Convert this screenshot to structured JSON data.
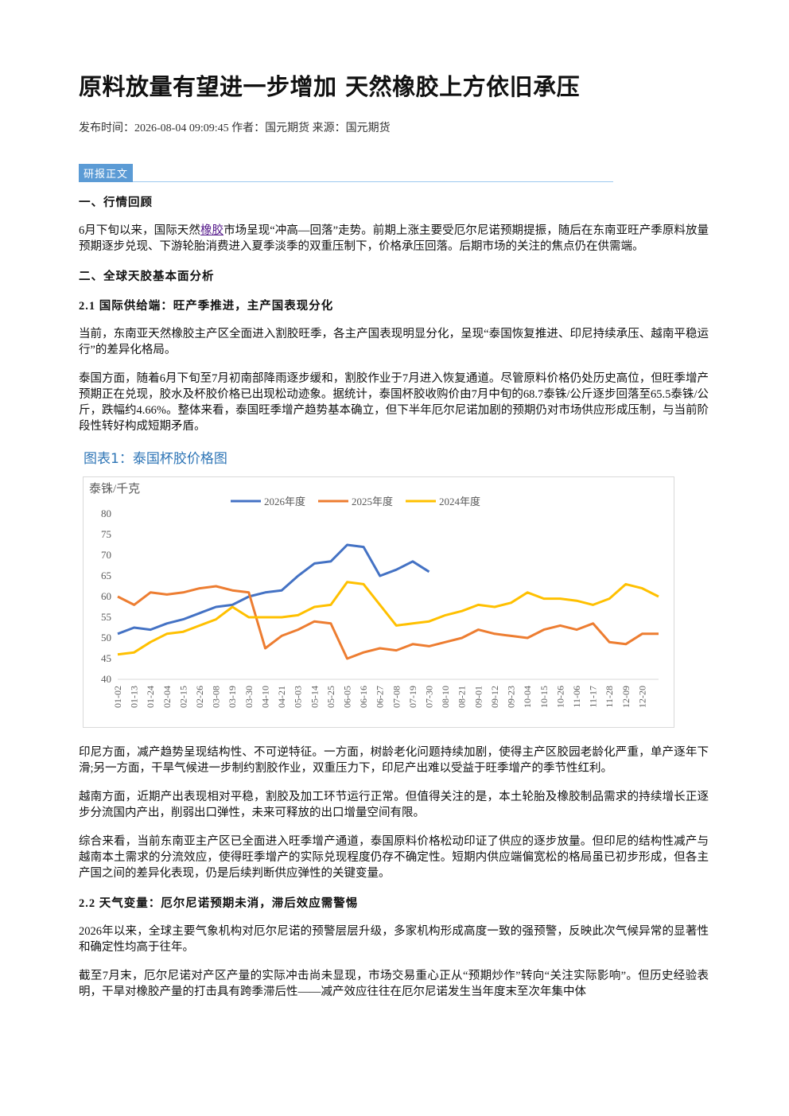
{
  "header": {
    "title": "原料放量有望进一步增加 天然橡胶上方依旧承压",
    "meta": "发布时间：2026-08-04 09:09:45 作者：国元期货 来源：国元期货"
  },
  "section_tag": "研报正文",
  "body": {
    "h1": "一、行情回顾",
    "p1": [
      "6月下旬以来，国际天然",
      "橡胶",
      "市场呈现“冲高—回落”走势。前期上涨主要受厄尔尼诺预期提振，随后在东南亚旺产季原料放量预期逐步兑现、下游轮胎消费进入夏季淡季的双重压制下，价格承压回落。后期市场的关注的焦点仍在供需端。"
    ],
    "h2": "二、全球天胶基本面分析",
    "h3": "2.1 国际供给端：旺产季推进，主产国表现分化",
    "p2": "当前，东南亚天然橡胶主产区全面进入割胶旺季，各主产国表现明显分化，呈现“泰国恢复推进、印尼持续承压、越南平稳运行”的差异化格局。",
    "p3": "泰国方面，随着6月下旬至7月初南部降雨逐步缓和，割胶作业于7月进入恢复通道。尽管原料价格仍处历史高位，但旺季增产预期正在兑现，胶水及杯胶价格已出现松动迹象。据统计，泰国杯胶收购价由7月中旬的68.7泰铢/公斤逐步回落至65.5泰铢/公斤，跌幅约4.66%。整体来看，泰国旺季增产趋势基本确立，但下半年厄尔尼诺加剧的预期仍对市场供应形成压制，与当前阶段性转好构成短期矛盾。"
  },
  "chart_data": {
    "type": "line",
    "title": "图表1：泰国杯胶价格图",
    "y_label": "泰铢/千克",
    "categories": [
      "01-02",
      "01-13",
      "01-24",
      "02-04",
      "02-15",
      "02-26",
      "03-08",
      "03-19",
      "03-30",
      "04-10",
      "04-21",
      "05-03",
      "05-14",
      "05-25",
      "06-05",
      "06-16",
      "06-27",
      "07-08",
      "07-19",
      "07-30",
      "08-10",
      "08-21",
      "09-01",
      "09-12",
      "09-23",
      "10-04",
      "10-15",
      "10-26",
      "11-06",
      "11-17",
      "11-28",
      "12-09",
      "12-20",
      null
    ],
    "series": [
      {
        "name": "2026年度",
        "color": "#4472c4",
        "values": [
          51,
          52.5,
          52,
          53.5,
          54.5,
          56,
          57.5,
          58,
          60,
          61,
          61.5,
          65,
          68,
          68.5,
          72.5,
          72,
          65,
          66.5,
          68.5,
          66,
          null,
          null,
          null,
          null,
          null,
          null,
          null,
          null,
          null,
          null,
          null,
          null,
          null,
          null
        ]
      },
      {
        "name": "2025年度",
        "color": "#ed7d31",
        "values": [
          60,
          58,
          61,
          60.5,
          61,
          62,
          62.5,
          61.5,
          61,
          47.5,
          50.5,
          52,
          54,
          53.5,
          45,
          46.5,
          47.5,
          47,
          48.5,
          48,
          49,
          50,
          52,
          51,
          50.5,
          50,
          52,
          53,
          52,
          53.5,
          49,
          48.5,
          51,
          51
        ]
      },
      {
        "name": "2024年度",
        "color": "#ffc000",
        "values": [
          46,
          46.5,
          49,
          51,
          51.5,
          53,
          54.5,
          57.5,
          55,
          55,
          55,
          55.5,
          57.5,
          58,
          63.5,
          63,
          58,
          53,
          53.5,
          54,
          55.5,
          56.5,
          58,
          57.5,
          58.5,
          61,
          59.5,
          59.5,
          59,
          58,
          59.5,
          63,
          62,
          60
        ]
      }
    ],
    "ylim": [
      40,
      80
    ],
    "yticks": [
      40,
      45,
      50,
      55,
      60,
      65,
      70,
      75,
      80
    ],
    "grid": false,
    "legend": "top"
  },
  "body2": {
    "p4": "印尼方面，减产趋势呈现结构性、不可逆特征。一方面，树龄老化问题持续加剧，使得主产区胶园老龄化严重，单产逐年下滑;另一方面，干旱气候进一步制约割胶作业，双重压力下，印尼产出难以受益于旺季增产的季节性红利。",
    "p5": "越南方面，近期产出表现相对平稳，割胶及加工环节运行正常。但值得关注的是，本土轮胎及橡胶制品需求的持续增长正逐步分流国内产出，削弱出口弹性，未来可释放的出口增量空间有限。",
    "p6": "综合来看，当前东南亚主产区已全面进入旺季增产通道，泰国原料价格松动印证了供应的逐步放量。但印尼的结构性减产与越南本土需求的分流效应，使得旺季增产的实际兑现程度仍存不确定性。短期内供应端偏宽松的格局虽已初步形成，但各主产国之间的差异化表现，仍是后续判断供应弹性的关键变量。",
    "h4": "2.2 天气变量：厄尔尼诺预期未消，滞后效应需警惕",
    "p7": "2026年以来，全球主要气象机构对厄尔尼诺的预警层层升级，多家机构形成高度一致的强预警，反映此次气候异常的显著性和确定性均高于往年。",
    "p8": "截至7月末，厄尔尼诺对产区产量的实际冲击尚未显现，市场交易重心正从“预期炒作”转向“关注实际影响”。但历史经验表明，干旱对橡胶产量的打击具有跨季滞后性——减产效应往往在厄尔尼诺发生当年度末至次年集中体"
  }
}
